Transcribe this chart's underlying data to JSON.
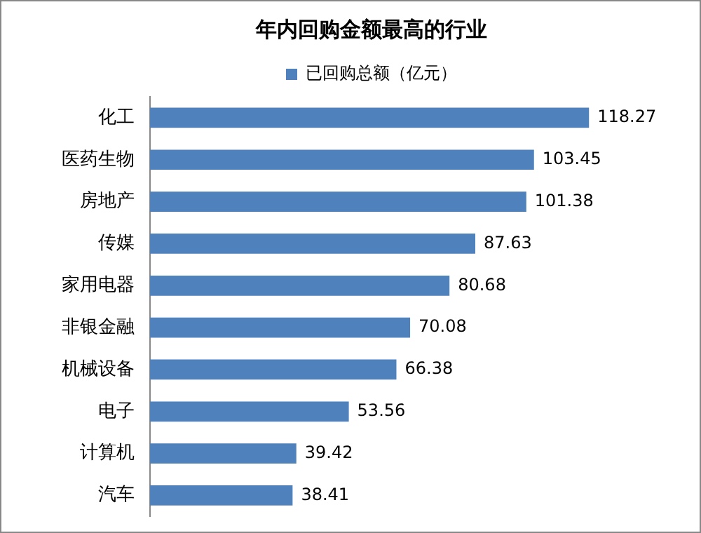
{
  "chart_data": {
    "type": "bar",
    "orientation": "horizontal",
    "title": "年内回购金额最高的行业",
    "categories": [
      "化工",
      "医药生物",
      "房地产",
      "传媒",
      "家用电器",
      "非银金融",
      "机械设备",
      "电子",
      "计算机",
      "汽车"
    ],
    "series": [
      {
        "name": "已回购总额（亿元）",
        "color": "#4f81bd",
        "values": [
          118.27,
          103.45,
          101.38,
          87.63,
          80.68,
          70.08,
          66.38,
          53.56,
          39.42,
          38.41
        ]
      }
    ],
    "data_labels": true,
    "legend": "top"
  }
}
